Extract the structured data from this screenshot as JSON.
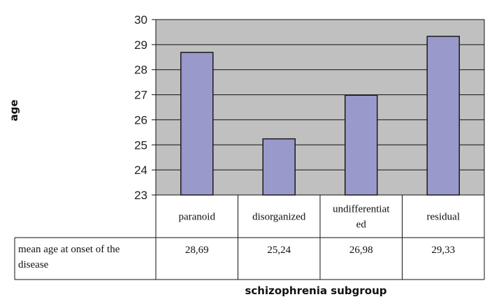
{
  "chart_data": {
    "type": "bar",
    "categories": [
      "paranoid",
      "disorganized",
      "undifferentiated",
      "residual"
    ],
    "category_label_lines": [
      [
        "paranoid"
      ],
      [
        "disorganized"
      ],
      [
        "undifferentiat",
        "ed"
      ],
      [
        "residual"
      ]
    ],
    "series": [
      {
        "values": [
          28.69,
          25.24,
          26.98,
          29.33
        ]
      }
    ],
    "table": {
      "row_label_lines": [
        "mean age at onset of the",
        "disease"
      ],
      "values_text": [
        "28,69",
        "25,24",
        "26,98",
        "29,33"
      ]
    },
    "xlabel": "schizophrenia subgroup",
    "ylabel": "age",
    "ylim": [
      23,
      30
    ],
    "yticks": [
      23,
      24,
      25,
      26,
      27,
      28,
      29,
      30
    ],
    "grid": true,
    "colors": {
      "bar_fill": "#9999cc",
      "bar_stroke": "#1a1a1a",
      "plot_bg": "#c0c0c0",
      "grid": "#111111"
    }
  }
}
